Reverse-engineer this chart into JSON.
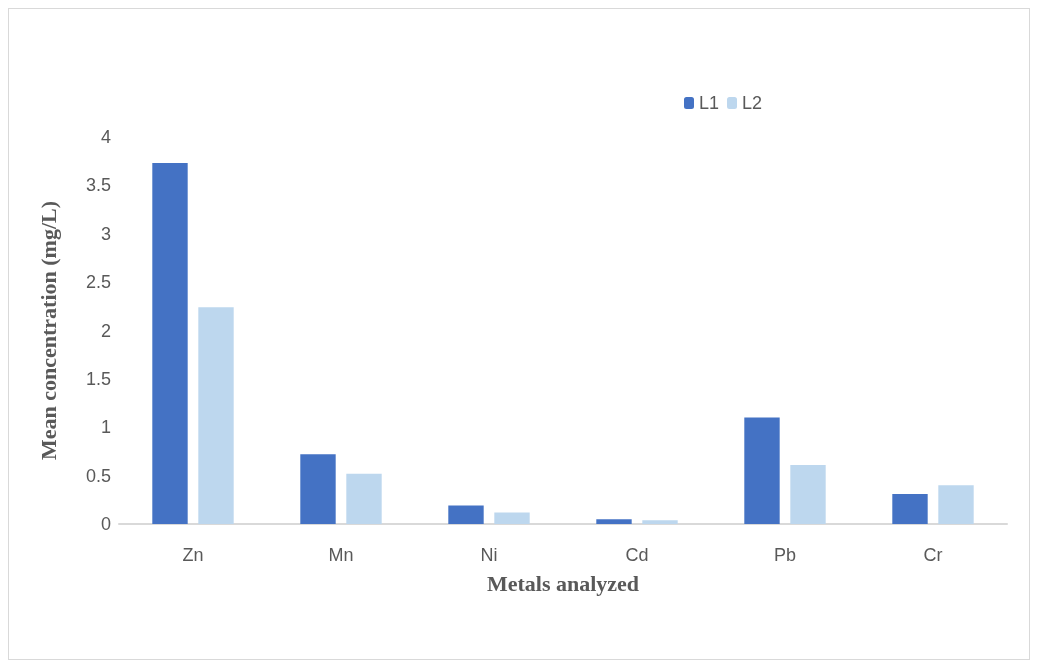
{
  "chart_data": {
    "type": "bar",
    "xlabel": "Metals analyzed",
    "ylabel": "Mean concentration (mg/L)",
    "categories": [
      "Zn",
      "Mn",
      "Ni",
      "Cd",
      "Pb",
      "Cr"
    ],
    "series": [
      {
        "name": "L1",
        "color": "#4472c4",
        "values": [
          3.73,
          0.72,
          0.19,
          0.05,
          1.1,
          0.31
        ]
      },
      {
        "name": "L2",
        "color": "#bdd7ee",
        "values": [
          2.24,
          0.52,
          0.12,
          0.04,
          0.61,
          0.4
        ]
      }
    ],
    "ylim": [
      0,
      4
    ],
    "yticks": [
      0,
      0.5,
      1,
      1.5,
      2,
      2.5,
      3,
      3.5,
      4
    ],
    "grid": false,
    "legend": "top right"
  }
}
